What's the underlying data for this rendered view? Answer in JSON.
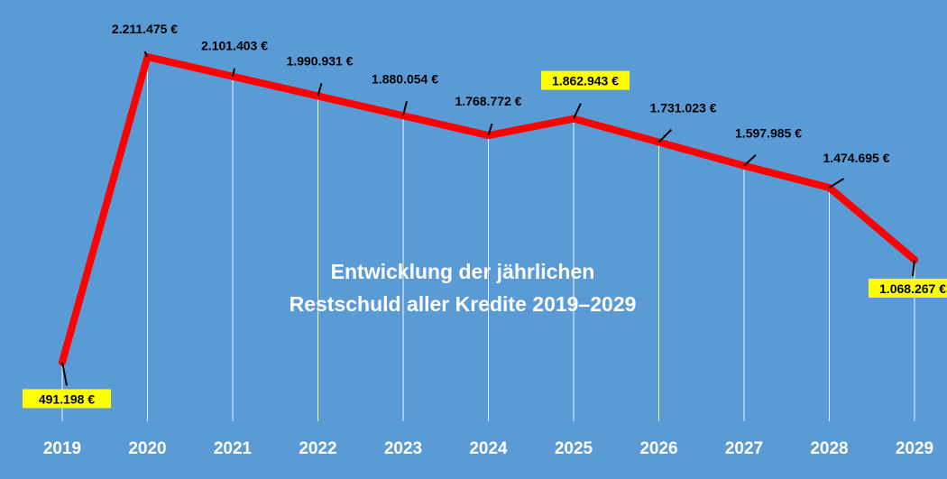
{
  "chart_data": {
    "type": "line",
    "title": [
      "Entwicklung der jährlichen",
      "Restschuld aller Kredite 2019–2029"
    ],
    "categories": [
      "2019",
      "2020",
      "2021",
      "2022",
      "2023",
      "2024",
      "2025",
      "2026",
      "2027",
      "2028",
      "2029"
    ],
    "values": [
      491198,
      2211475,
      2101403,
      1990931,
      1880054,
      1768772,
      1862943,
      1731023,
      1597985,
      1474695,
      1068267
    ],
    "value_labels": [
      "491.198 €",
      "2.211.475 €",
      "2.101.403 €",
      "1.990.931 €",
      "1.880.054 €",
      "1.768.772 €",
      "1.862.943 €",
      "1.731.023 €",
      "1.597.985 €",
      "1.474.695 €",
      "1.068.267 €"
    ],
    "highlighted": [
      "2019",
      "2025",
      "2029"
    ],
    "grid": "vertical",
    "legend": "none",
    "colors": {
      "background": "#5b9bd5",
      "line": "#ff0000",
      "highlight": "#ffff00",
      "grid": "#ffffff",
      "labels": "#000000",
      "axis_text": "#ffffff"
    }
  }
}
